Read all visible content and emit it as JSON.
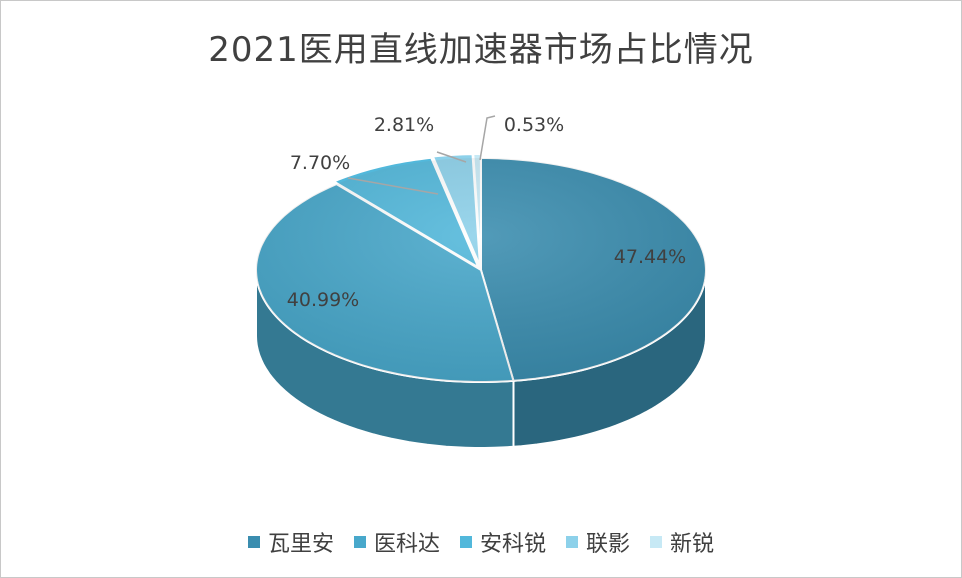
{
  "chart_data": {
    "type": "pie",
    "title": "2021医用直线加速器市场占比情况",
    "categories": [
      "瓦里安",
      "医科达",
      "安科锐",
      "联影",
      "新锐"
    ],
    "values": [
      47.44,
      40.99,
      7.7,
      2.81,
      0.53
    ],
    "labels": [
      "47.44%",
      "40.99%",
      "7.70%",
      "2.81%",
      "0.53%"
    ],
    "colors": [
      "#3a8daf",
      "#48a8cb",
      "#52b8db",
      "#8dd1ea",
      "#c7e9f5"
    ],
    "legend_position": "bottom",
    "style": "3d-exploded"
  }
}
